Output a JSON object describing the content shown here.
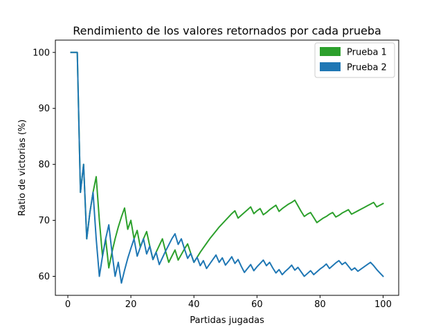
{
  "chart_data": {
    "type": "line",
    "title": "Rendimiento de los valores retornados por cada prueba",
    "xlabel": "Partidas jugadas",
    "ylabel": "Ratio de victorias (%)",
    "xlim": [
      -3.95,
      104.95
    ],
    "ylim": [
      56.6,
      102.2
    ],
    "xticks": [
      0,
      20,
      40,
      60,
      80,
      100
    ],
    "yticks": [
      60,
      70,
      80,
      90,
      100
    ],
    "grid": false,
    "legend_position": "top-right",
    "series": [
      {
        "name": "Prueba 1",
        "color": "#2ca02c",
        "points": [
          [
            1,
            100
          ],
          [
            3,
            100
          ],
          [
            4,
            75
          ],
          [
            5,
            80
          ],
          [
            6,
            66.7
          ],
          [
            7,
            71.4
          ],
          [
            8,
            75
          ],
          [
            9,
            77.8
          ],
          [
            10,
            70
          ],
          [
            11,
            63.6
          ],
          [
            12,
            66.7
          ],
          [
            13,
            61.5
          ],
          [
            14,
            64.3
          ],
          [
            15,
            66.7
          ],
          [
            16,
            68.8
          ],
          [
            17,
            70.6
          ],
          [
            18,
            72.2
          ],
          [
            19,
            68.4
          ],
          [
            20,
            70
          ],
          [
            21,
            66.7
          ],
          [
            22,
            68.2
          ],
          [
            23,
            65.2
          ],
          [
            24,
            66.7
          ],
          [
            25,
            68
          ],
          [
            26,
            65.4
          ],
          [
            27,
            63
          ],
          [
            28,
            64.3
          ],
          [
            29,
            65.5
          ],
          [
            30,
            66.7
          ],
          [
            31,
            64.5
          ],
          [
            32,
            62.5
          ],
          [
            33,
            63.6
          ],
          [
            34,
            64.7
          ],
          [
            35,
            62.9
          ],
          [
            36,
            63.9
          ],
          [
            37,
            64.9
          ],
          [
            38,
            65.8
          ],
          [
            39,
            64.1
          ],
          [
            40,
            62.5
          ],
          [
            41,
            63.4
          ],
          [
            42,
            64.3
          ],
          [
            43,
            65.1
          ],
          [
            44,
            65.9
          ],
          [
            45,
            66.7
          ],
          [
            46,
            67.4
          ],
          [
            47,
            68.1
          ],
          [
            48,
            68.8
          ],
          [
            49,
            69.4
          ],
          [
            50,
            70
          ],
          [
            51,
            70.6
          ],
          [
            52,
            71.2
          ],
          [
            53,
            71.7
          ],
          [
            54,
            70.4
          ],
          [
            55,
            70.9
          ],
          [
            56,
            71.4
          ],
          [
            57,
            71.9
          ],
          [
            58,
            72.4
          ],
          [
            59,
            71.2
          ],
          [
            60,
            71.7
          ],
          [
            61,
            72.1
          ],
          [
            62,
            71
          ],
          [
            63,
            71.4
          ],
          [
            64,
            71.9
          ],
          [
            65,
            72.3
          ],
          [
            66,
            72.7
          ],
          [
            67,
            71.6
          ],
          [
            68,
            72.1
          ],
          [
            69,
            72.5
          ],
          [
            70,
            72.9
          ],
          [
            71,
            73.2
          ],
          [
            72,
            73.6
          ],
          [
            73,
            72.6
          ],
          [
            74,
            71.6
          ],
          [
            75,
            70.7
          ],
          [
            76,
            71.1
          ],
          [
            77,
            71.4
          ],
          [
            78,
            70.5
          ],
          [
            79,
            69.6
          ],
          [
            80,
            70
          ],
          [
            81,
            70.4
          ],
          [
            82,
            70.7
          ],
          [
            83,
            71.1
          ],
          [
            84,
            71.4
          ],
          [
            85,
            70.6
          ],
          [
            86,
            70.9
          ],
          [
            87,
            71.3
          ],
          [
            88,
            71.6
          ],
          [
            89,
            71.9
          ],
          [
            90,
            71.1
          ],
          [
            91,
            71.4
          ],
          [
            92,
            71.7
          ],
          [
            93,
            72
          ],
          [
            94,
            72.3
          ],
          [
            95,
            72.6
          ],
          [
            96,
            72.9
          ],
          [
            97,
            73.2
          ],
          [
            98,
            72.4
          ],
          [
            99,
            72.7
          ],
          [
            100,
            73
          ]
        ]
      },
      {
        "name": "Prueba 2",
        "color": "#1f77b4",
        "points": [
          [
            1,
            100
          ],
          [
            3,
            100
          ],
          [
            4,
            75
          ],
          [
            5,
            80
          ],
          [
            6,
            66.7
          ],
          [
            7,
            71.4
          ],
          [
            8,
            75
          ],
          [
            9,
            66.7
          ],
          [
            10,
            60
          ],
          [
            11,
            63.6
          ],
          [
            12,
            66.7
          ],
          [
            13,
            69.2
          ],
          [
            14,
            64.3
          ],
          [
            15,
            60
          ],
          [
            16,
            62.5
          ],
          [
            17,
            58.8
          ],
          [
            18,
            61.1
          ],
          [
            19,
            63.2
          ],
          [
            20,
            65
          ],
          [
            21,
            66.7
          ],
          [
            22,
            63.6
          ],
          [
            23,
            65.2
          ],
          [
            24,
            66.7
          ],
          [
            25,
            64
          ],
          [
            26,
            65.4
          ],
          [
            27,
            63
          ],
          [
            28,
            64.3
          ],
          [
            29,
            62.1
          ],
          [
            30,
            63.3
          ],
          [
            31,
            64.5
          ],
          [
            32,
            65.6
          ],
          [
            33,
            66.7
          ],
          [
            34,
            67.6
          ],
          [
            35,
            65.7
          ],
          [
            36,
            66.7
          ],
          [
            37,
            64.9
          ],
          [
            38,
            63.2
          ],
          [
            39,
            64.1
          ],
          [
            40,
            62.5
          ],
          [
            41,
            63.4
          ],
          [
            42,
            61.9
          ],
          [
            43,
            62.8
          ],
          [
            44,
            61.4
          ],
          [
            45,
            62.2
          ],
          [
            46,
            63
          ],
          [
            47,
            63.8
          ],
          [
            48,
            62.5
          ],
          [
            49,
            63.3
          ],
          [
            50,
            62
          ],
          [
            51,
            62.7
          ],
          [
            52,
            63.5
          ],
          [
            53,
            62.3
          ],
          [
            54,
            63
          ],
          [
            55,
            61.8
          ],
          [
            56,
            60.7
          ],
          [
            57,
            61.4
          ],
          [
            58,
            62.1
          ],
          [
            59,
            61
          ],
          [
            60,
            61.7
          ],
          [
            61,
            62.3
          ],
          [
            62,
            62.9
          ],
          [
            63,
            61.9
          ],
          [
            64,
            62.5
          ],
          [
            65,
            61.5
          ],
          [
            66,
            60.6
          ],
          [
            67,
            61.2
          ],
          [
            68,
            60.3
          ],
          [
            69,
            60.9
          ],
          [
            70,
            61.4
          ],
          [
            71,
            62
          ],
          [
            72,
            61.1
          ],
          [
            73,
            61.6
          ],
          [
            74,
            60.8
          ],
          [
            75,
            60
          ],
          [
            76,
            60.5
          ],
          [
            77,
            61
          ],
          [
            78,
            60.3
          ],
          [
            79,
            60.8
          ],
          [
            80,
            61.3
          ],
          [
            81,
            61.7
          ],
          [
            82,
            62.2
          ],
          [
            83,
            61.4
          ],
          [
            84,
            61.9
          ],
          [
            85,
            62.4
          ],
          [
            86,
            62.8
          ],
          [
            87,
            62.1
          ],
          [
            88,
            62.5
          ],
          [
            89,
            61.8
          ],
          [
            90,
            61.1
          ],
          [
            91,
            61.5
          ],
          [
            92,
            60.9
          ],
          [
            93,
            61.3
          ],
          [
            94,
            61.7
          ],
          [
            95,
            62.1
          ],
          [
            96,
            62.5
          ],
          [
            97,
            61.9
          ],
          [
            98,
            61.2
          ],
          [
            99,
            60.6
          ],
          [
            100,
            60
          ]
        ]
      }
    ]
  }
}
